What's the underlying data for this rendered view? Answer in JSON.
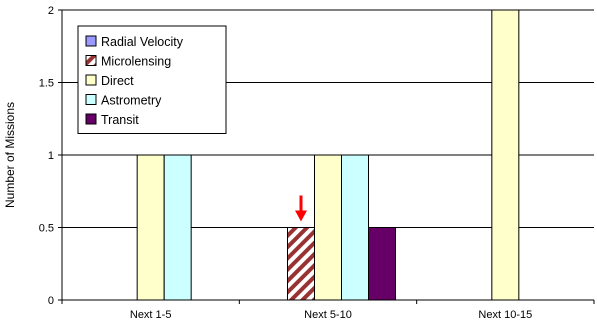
{
  "chart_data": {
    "type": "bar",
    "title": "",
    "xlabel": "",
    "ylabel": "Number of Missions",
    "ylim": [
      0,
      2
    ],
    "yticks": [
      "0",
      "0.5",
      "1",
      "1.5",
      "2"
    ],
    "categories": [
      "Next 1-5",
      "Next 5-10",
      "Next 10-15"
    ],
    "series": [
      {
        "name": "Radial Velocity",
        "values": [
          0,
          0,
          0
        ],
        "color": "#9999ff",
        "pattern": "solid"
      },
      {
        "name": "Microlensing",
        "values": [
          0,
          0.5,
          0
        ],
        "color": "#993333",
        "pattern": "diagonal-stripes"
      },
      {
        "name": "Direct",
        "values": [
          1,
          1,
          2
        ],
        "color": "#ffffcc",
        "pattern": "solid"
      },
      {
        "name": "Astrometry",
        "values": [
          1,
          1,
          0
        ],
        "color": "#ccffff",
        "pattern": "solid"
      },
      {
        "name": "Transit",
        "values": [
          0,
          0.5,
          0
        ],
        "color": "#660066",
        "pattern": "solid"
      }
    ],
    "grid": "horizontal",
    "legend_position": "top-left",
    "annotation": {
      "type": "arrow",
      "color": "#ff0000",
      "category": "Next 5-10",
      "series": "Microlensing"
    }
  }
}
